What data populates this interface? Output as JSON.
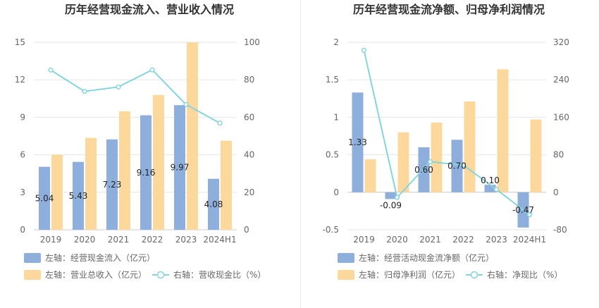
{
  "chart_data": [
    {
      "type": "bar",
      "title": "历年经营现金流入、营业收入情况",
      "categories": [
        "2019",
        "2020",
        "2021",
        "2022",
        "2023",
        "2024H1"
      ],
      "left_axis": {
        "ylim": [
          0,
          15
        ],
        "ticks": [
          "0",
          "3",
          "6",
          "9",
          "12",
          "15"
        ]
      },
      "right_axis": {
        "ylim": [
          0,
          100
        ],
        "ticks": [
          "0",
          "20",
          "40",
          "60",
          "80",
          "100"
        ]
      },
      "series": [
        {
          "name": "左轴：经营现金流入（亿元）",
          "axis": "left",
          "type": "bar",
          "color": "#8eaedc",
          "values": [
            5.04,
            5.43,
            7.23,
            9.16,
            9.97,
            4.08
          ],
          "labels": [
            "5.04",
            "5.43",
            "7.23",
            "9.16",
            "9.97",
            "4.08"
          ]
        },
        {
          "name": "左轴：营业总收入（亿元）",
          "axis": "left",
          "type": "bar",
          "color": "#fdd89d",
          "values": [
            6.0,
            7.35,
            9.48,
            10.78,
            15.0,
            7.13
          ]
        },
        {
          "name": "右轴：营收现金比（%）",
          "axis": "right",
          "type": "line",
          "color": "#86d5dc",
          "values": [
            85.2,
            73.8,
            76.2,
            85.3,
            66.8,
            56.9
          ]
        }
      ],
      "legend_position": "bottom",
      "grid": true
    },
    {
      "type": "bar",
      "title": "历年经营现金流净额、归母净利润情况",
      "categories": [
        "2019",
        "2020",
        "2021",
        "2022",
        "2023",
        "2024H1"
      ],
      "left_axis": {
        "ylim": [
          -0.5,
          2
        ],
        "ticks": [
          "-0.5",
          "0",
          "0.5",
          "1",
          "1.5",
          "2"
        ]
      },
      "right_axis": {
        "ylim": [
          -80,
          320
        ],
        "ticks": [
          "-80",
          "0",
          "80",
          "160",
          "240",
          "320"
        ]
      },
      "series": [
        {
          "name": "左轴：经营活动现金流净额（亿元）",
          "axis": "left",
          "type": "bar",
          "color": "#8eaedc",
          "values": [
            1.33,
            -0.09,
            0.6,
            0.7,
            0.1,
            -0.47
          ],
          "labels": [
            "1.33",
            "-0.09",
            "0.60",
            "0.70",
            "0.10",
            "-0.47"
          ]
        },
        {
          "name": "左轴：归母净利润（亿元）",
          "axis": "left",
          "type": "bar",
          "color": "#fdd89d",
          "values": [
            0.44,
            0.8,
            0.93,
            1.21,
            1.64,
            0.97
          ]
        },
        {
          "name": "右轴：净现比（%）",
          "axis": "right",
          "type": "line",
          "color": "#86d5dc",
          "values": [
            303,
            -11,
            65,
            58,
            6,
            -48
          ]
        }
      ],
      "legend_position": "bottom",
      "grid": true
    }
  ]
}
